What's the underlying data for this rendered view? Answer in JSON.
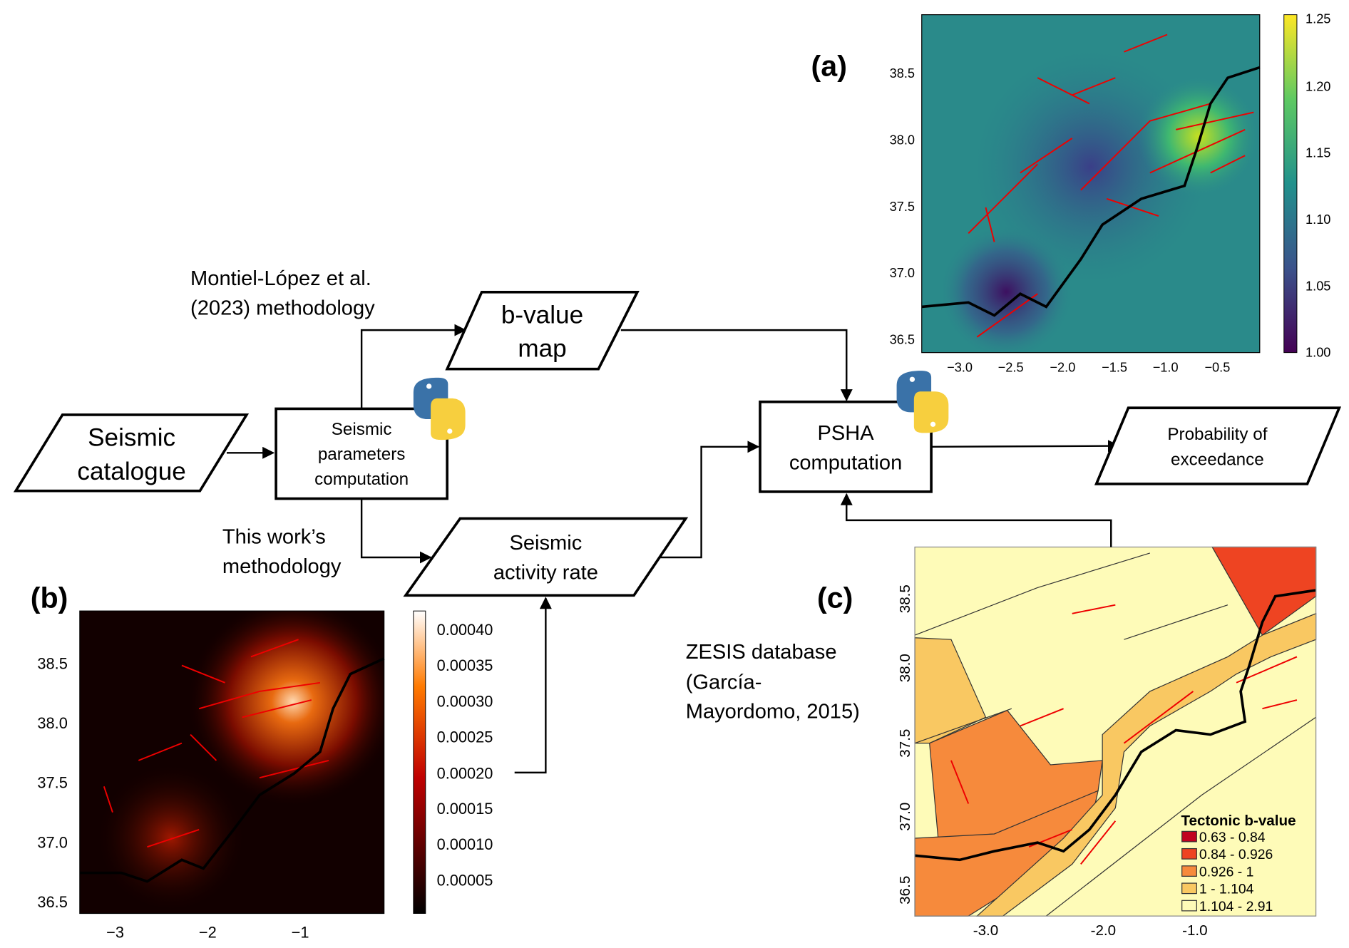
{
  "nodes": {
    "catalogue": [
      "Seismic",
      "catalogue"
    ],
    "params": [
      "Seismic",
      "parameters",
      "computation"
    ],
    "bvalue": [
      "b-value",
      "map"
    ],
    "activity": [
      "Seismic",
      "activity rate"
    ],
    "psha": [
      "PSHA",
      "computation"
    ],
    "probability": [
      "Probability of",
      "exceedance"
    ]
  },
  "annotations": {
    "montiel": [
      "Montiel-López et al.",
      "(2023) methodology"
    ],
    "thiswork": [
      "This work’s",
      "methodology"
    ],
    "zesis": [
      "ZESIS database",
      "(García-",
      "Mayordomo, 2015)"
    ]
  },
  "panels": {
    "a": {
      "label": "(a)",
      "xticks": [
        "−3.0",
        "−2.5",
        "−2.0",
        "−1.5",
        "−1.0",
        "−0.5"
      ],
      "yticks": [
        "38.5",
        "38.0",
        "37.5",
        "37.0",
        "36.5"
      ],
      "colorbar": [
        "1.25",
        "1.20",
        "1.15",
        "1.10",
        "1.05",
        "1.00"
      ]
    },
    "b": {
      "label": "(b)",
      "xticks": [
        "−3",
        "−2",
        "−1"
      ],
      "yticks": [
        "38.5",
        "38.0",
        "37.5",
        "37.0",
        "36.5"
      ],
      "colorbar": [
        "0.00040",
        "0.00035",
        "0.00030",
        "0.00025",
        "0.00020",
        "0.00015",
        "0.00010",
        "0.00005"
      ]
    },
    "c": {
      "label": "(c)",
      "xticks": [
        "-3.0",
        "-2.0",
        "-1.0"
      ],
      "yticks": [
        "38.5",
        "38.0",
        "37.5",
        "37.0",
        "36.5"
      ],
      "legend_title": "Tectonic b-value",
      "legend": [
        {
          "range": "0.63 - 0.84",
          "color": "#c0001f"
        },
        {
          "range": "0.84 - 0.926",
          "color": "#ee4422"
        },
        {
          "range": "0.926 - 1",
          "color": "#f68a3c"
        },
        {
          "range": "1 - 1.104",
          "color": "#f9c862"
        },
        {
          "range": "1.104 - 2.91",
          "color": "#fefbb8"
        }
      ]
    }
  }
}
